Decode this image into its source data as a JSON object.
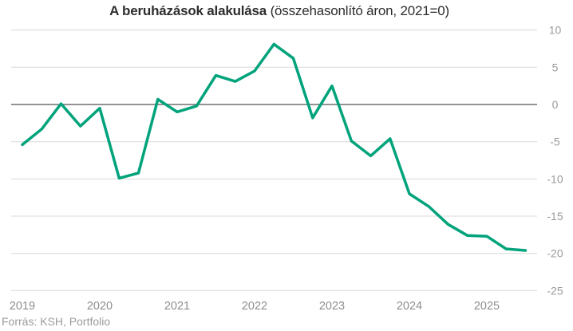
{
  "chart_data": {
    "type": "line",
    "title": "A beruházások alakulása (összehasonlító áron, 2021=0)",
    "title_bold": "A beruházások alakulása",
    "title_suffix": " (összehasonlító áron, 2021=0)",
    "source": "Forrás: KSH, Portfolio",
    "x_tick_labels": [
      "2019",
      "2020",
      "2021",
      "2022",
      "2023",
      "2024",
      "2025"
    ],
    "y_ticks": [
      10,
      5,
      0,
      -5,
      -10,
      -15,
      -20,
      -25
    ],
    "ylim": [
      -25,
      10
    ],
    "grid": true,
    "legend_position": "none",
    "quarters": [
      "2019 Q1",
      "2019 Q2",
      "2019 Q3",
      "2019 Q4",
      "2020 Q1",
      "2020 Q2",
      "2020 Q3",
      "2020 Q4",
      "2021 Q1",
      "2021 Q2",
      "2021 Q3",
      "2021 Q4",
      "2022 Q1",
      "2022 Q2",
      "2022 Q3",
      "2022 Q4",
      "2023 Q1",
      "2023 Q2",
      "2023 Q3",
      "2023 Q4",
      "2024 Q1",
      "2024 Q2",
      "2024 Q3",
      "2024 Q4",
      "2025 Q1",
      "2025 Q2",
      "2025 Q3"
    ],
    "values": [
      -5.4,
      -3.3,
      0.1,
      -2.9,
      -0.5,
      -9.9,
      -9.2,
      0.7,
      -1.0,
      -0.2,
      3.9,
      3.1,
      4.5,
      8.1,
      6.2,
      -1.8,
      2.5,
      -4.9,
      -6.9,
      -4.6,
      -12.0,
      -13.7,
      -16.1,
      -17.6,
      -17.7,
      -19.4,
      -19.6
    ],
    "line_color": "#00a37b"
  },
  "colors": {
    "background": "#ffffff",
    "grid": "#d8d8d8",
    "zero_line": "#6f6f6f",
    "y_tick_text": "#9b9b9b",
    "x_tick_text": "#8e8e8e",
    "title_text": "#2d2d2d",
    "source_text": "#9b9b9b",
    "line": "#00a37b"
  }
}
